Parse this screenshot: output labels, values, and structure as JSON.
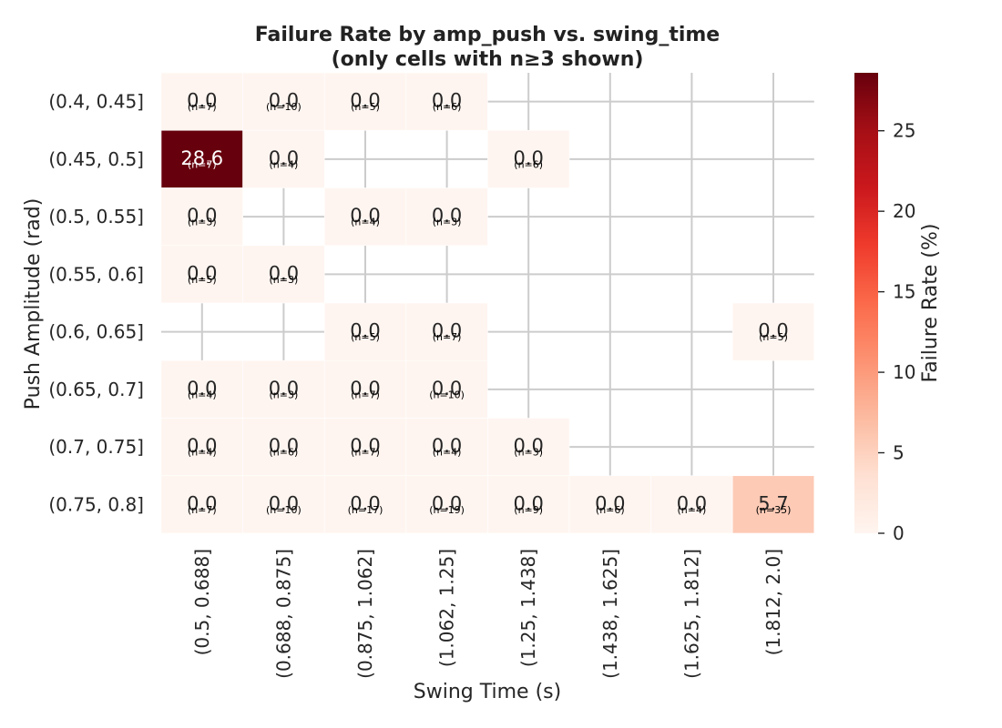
{
  "chart_data": {
    "type": "heatmap",
    "title": "Failure Rate by amp_push vs. swing_time",
    "subtitle": "(only cells with n≥3 shown)",
    "xlabel": "Swing Time (s)",
    "ylabel": "Push Amplitude (rad)",
    "x_categories": [
      "(0.5, 0.688]",
      "(0.688, 0.875]",
      "(0.875, 1.062]",
      "(1.062, 1.25]",
      "(1.25, 1.438]",
      "(1.438, 1.625]",
      "(1.625, 1.812]",
      "(1.812, 2.0]"
    ],
    "y_categories": [
      "(0.4, 0.45]",
      "(0.45, 0.5]",
      "(0.5, 0.55]",
      "(0.55, 0.6]",
      "(0.6, 0.65]",
      "(0.65, 0.7]",
      "(0.7, 0.75]",
      "(0.75, 0.8]"
    ],
    "values": [
      [
        0.0,
        0.0,
        0.0,
        0.0,
        null,
        null,
        null,
        null
      ],
      [
        28.6,
        0.0,
        null,
        null,
        0.0,
        null,
        null,
        null
      ],
      [
        0.0,
        null,
        0.0,
        0.0,
        null,
        null,
        null,
        null
      ],
      [
        0.0,
        0.0,
        null,
        null,
        null,
        null,
        null,
        null
      ],
      [
        null,
        null,
        0.0,
        0.0,
        null,
        null,
        null,
        0.0
      ],
      [
        0.0,
        0.0,
        0.0,
        0.0,
        null,
        null,
        null,
        null
      ],
      [
        0.0,
        0.0,
        0.0,
        0.0,
        0.0,
        null,
        null,
        null
      ],
      [
        0.0,
        0.0,
        0.0,
        0.0,
        0.0,
        0.0,
        0.0,
        5.7
      ]
    ],
    "counts": [
      [
        7,
        10,
        5,
        6,
        null,
        null,
        null,
        null
      ],
      [
        7,
        4,
        null,
        null,
        6,
        null,
        null,
        null
      ],
      [
        3,
        null,
        4,
        3,
        null,
        null,
        null,
        null
      ],
      [
        5,
        3,
        null,
        null,
        null,
        null,
        null,
        null
      ],
      [
        null,
        null,
        5,
        7,
        null,
        null,
        null,
        5
      ],
      [
        4,
        3,
        7,
        10,
        null,
        null,
        null,
        null
      ],
      [
        4,
        6,
        7,
        4,
        3,
        null,
        null,
        null
      ],
      [
        7,
        10,
        17,
        19,
        9,
        6,
        4,
        35
      ]
    ],
    "colorbar": {
      "label": "Failure Rate (%)",
      "range": [
        0,
        28.6
      ],
      "ticks": [
        0,
        5,
        10,
        15,
        20,
        25
      ],
      "colormap": "Reds"
    },
    "grid": true
  }
}
